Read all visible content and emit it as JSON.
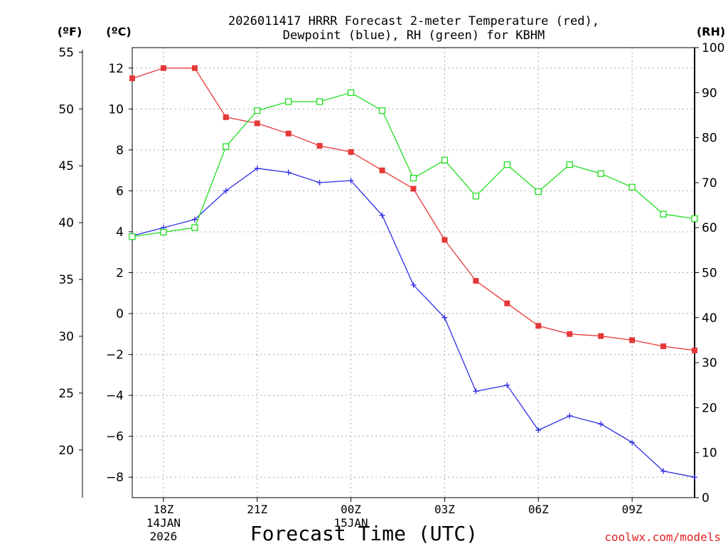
{
  "chart_data": {
    "type": "line",
    "title_line1": "2026011417 HRRR Forecast 2-meter Temperature (red),",
    "title_line2": "Dewpoint (blue), RH (green) for KBHM",
    "xlabel": "Forecast Time (UTC)",
    "watermark": "coolwx.com/models",
    "unit_f": "(ºF)",
    "unit_c": "(ºC)",
    "unit_rh": "(RH)",
    "x_hours": [
      17,
      18,
      19,
      20,
      21,
      22,
      23,
      24,
      25,
      26,
      27,
      28,
      29,
      30,
      31,
      32,
      33,
      34,
      35
    ],
    "xlim": [
      17,
      35
    ],
    "x_ticks": [
      {
        "hour": 18,
        "label": "18Z",
        "date": "14JAN",
        "year": "2026"
      },
      {
        "hour": 21,
        "label": "21Z",
        "date": "",
        "year": ""
      },
      {
        "hour": 24,
        "label": "00Z",
        "date": "15JAN",
        "year": ""
      },
      {
        "hour": 27,
        "label": "03Z",
        "date": "",
        "year": ""
      },
      {
        "hour": 30,
        "label": "06Z",
        "date": "",
        "year": ""
      },
      {
        "hour": 33,
        "label": "09Z",
        "date": "",
        "year": ""
      }
    ],
    "ylim_c": [
      -9,
      13
    ],
    "y_ticks_c": [
      12,
      10,
      8,
      6,
      4,
      2,
      0,
      -2,
      -4,
      -6,
      -8
    ],
    "y_ticks_c_labels": [
      "12",
      "10",
      "8",
      "6",
      "4",
      "2",
      "0",
      "−2",
      "−4",
      "−6",
      "−8"
    ],
    "y_ticks_f": [
      55,
      50,
      45,
      40,
      35,
      30,
      25,
      20
    ],
    "ylim_rh": [
      0,
      100
    ],
    "y_ticks_rh": [
      100,
      90,
      80,
      70,
      60,
      50,
      40,
      30,
      20,
      10,
      0
    ],
    "series": [
      {
        "name": "Temperature",
        "color": "#e53838",
        "marker": "filled-square",
        "axis": "c",
        "values": [
          11.5,
          12.0,
          12.0,
          9.6,
          9.3,
          8.8,
          8.2,
          7.9,
          7.0,
          6.1,
          3.6,
          1.6,
          0.5,
          -0.6,
          -1.0,
          -1.1,
          -1.3,
          -1.6,
          -1.8
        ]
      },
      {
        "name": "Dewpoint",
        "color": "#2e2ee6",
        "marker": "plus",
        "axis": "c",
        "values": [
          3.8,
          4.2,
          4.6,
          6.0,
          7.1,
          6.9,
          6.4,
          6.5,
          4.8,
          1.4,
          -0.2,
          -3.8,
          -3.5,
          -5.7,
          -5.0,
          -5.4,
          -6.3,
          -7.7,
          -8.0
        ]
      },
      {
        "name": "RH",
        "color": "#22dd22",
        "marker": "open-square",
        "axis": "rh",
        "values": [
          58,
          59,
          60,
          78,
          86,
          88,
          88,
          90,
          86,
          71,
          75,
          67,
          74,
          68,
          74,
          72,
          69,
          63,
          62
        ]
      }
    ]
  }
}
